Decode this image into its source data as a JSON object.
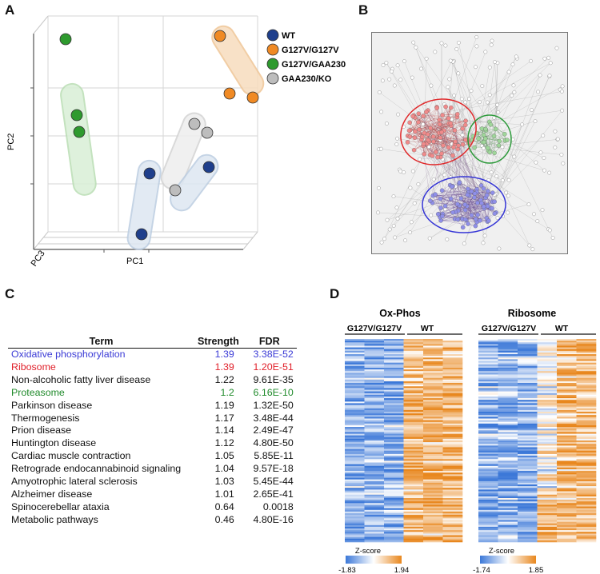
{
  "panels": {
    "a": "A",
    "b": "B",
    "c": "C",
    "d": "D"
  },
  "pca": {
    "axes": {
      "pc1": "PC1",
      "pc2": "PC2",
      "pc3": "PC3"
    },
    "legend": [
      {
        "label": "WT",
        "color": "#1f3f8c"
      },
      {
        "label": "G127V/G127V",
        "color": "#f08a24"
      },
      {
        "label": "G127V/GAA230",
        "color": "#2e9a2e"
      },
      {
        "label": "GAA230/KO",
        "color": "#bdbdbd"
      }
    ]
  },
  "network": {
    "clusters": [
      {
        "name": "red",
        "color": "#e0282a"
      },
      {
        "name": "green",
        "color": "#2c9a3a"
      },
      {
        "name": "blue",
        "color": "#3535d6"
      }
    ]
  },
  "enrichment": {
    "headers": {
      "term": "Term",
      "strength": "Strength",
      "fdr": "FDR"
    },
    "rows": [
      {
        "term": "Oxidative phosphorylation",
        "strength": "1.39",
        "fdr": "3.38E-52",
        "color": "#3b3bd6"
      },
      {
        "term": "Ribosome",
        "strength": "1.39",
        "fdr": "1.20E-51",
        "color": "#e0202a"
      },
      {
        "term": "Non-alcoholic fatty liver disease",
        "strength": "1.22",
        "fdr": "9.61E-35",
        "color": "#111111"
      },
      {
        "term": "Proteasome",
        "strength": "1.2",
        "fdr": "6.16E-10",
        "color": "#1f8a2a"
      },
      {
        "term": "Parkinson disease",
        "strength": "1.19",
        "fdr": "1.32E-50",
        "color": "#111111"
      },
      {
        "term": "Thermogenesis",
        "strength": "1.17",
        "fdr": "3.48E-44",
        "color": "#111111"
      },
      {
        "term": "Prion disease",
        "strength": "1.14",
        "fdr": "2.49E-47",
        "color": "#111111"
      },
      {
        "term": "Huntington disease",
        "strength": "1.12",
        "fdr": "4.80E-50",
        "color": "#111111"
      },
      {
        "term": "Cardiac muscle contraction",
        "strength": "1.05",
        "fdr": "5.85E-11",
        "color": "#111111"
      },
      {
        "term": "Retrograde endocannabinoid signaling",
        "strength": "1.04",
        "fdr": "9.57E-18",
        "color": "#111111"
      },
      {
        "term": "Amyotrophic lateral sclerosis",
        "strength": "1.03",
        "fdr": "5.45E-44",
        "color": "#111111"
      },
      {
        "term": "Alzheimer disease",
        "strength": "1.01",
        "fdr": "2.65E-41",
        "color": "#111111"
      },
      {
        "term": "Spinocerebellar ataxia",
        "strength": "0.64",
        "fdr": "0.0018",
        "color": "#111111"
      },
      {
        "term": "Metabolic pathways",
        "strength": "0.46",
        "fdr": "4.80E-16",
        "color": "#111111"
      }
    ]
  },
  "heatmaps": [
    {
      "title": "Ox-Phos",
      "group1": "G127V/G127V",
      "group2": "WT",
      "scale_label": "Z-score",
      "min": "-1.83",
      "max": "1.94",
      "seed": 11
    },
    {
      "title": "Ribosome",
      "group1": "G127V/G127V",
      "group2": "WT",
      "scale_label": "Z-score",
      "min": "-1.74",
      "max": "1.85",
      "seed": 29
    }
  ],
  "chart_data": {
    "type": "scatter",
    "title": "",
    "xlabel": "PC1",
    "ylabel": "PC2",
    "zlabel": "PC3",
    "series": [
      {
        "name": "WT",
        "points": [
          [
            -0.2,
            -0.1
          ],
          [
            0.2,
            0.1
          ],
          [
            -0.6,
            -0.7
          ]
        ]
      },
      {
        "name": "G127V/G127V",
        "points": [
          [
            0.3,
            0.85
          ],
          [
            0.33,
            0.75
          ],
          [
            0.45,
            0.75
          ]
        ]
      },
      {
        "name": "G127V/GAA230",
        "points": [
          [
            -0.9,
            0.95
          ],
          [
            -0.85,
            0.45
          ],
          [
            -0.8,
            0.35
          ]
        ]
      },
      {
        "name": "GAA230/KO",
        "points": [
          [
            0.1,
            0.3
          ],
          [
            0.18,
            0.28
          ],
          [
            0.0,
            -0.25
          ]
        ]
      }
    ]
  }
}
